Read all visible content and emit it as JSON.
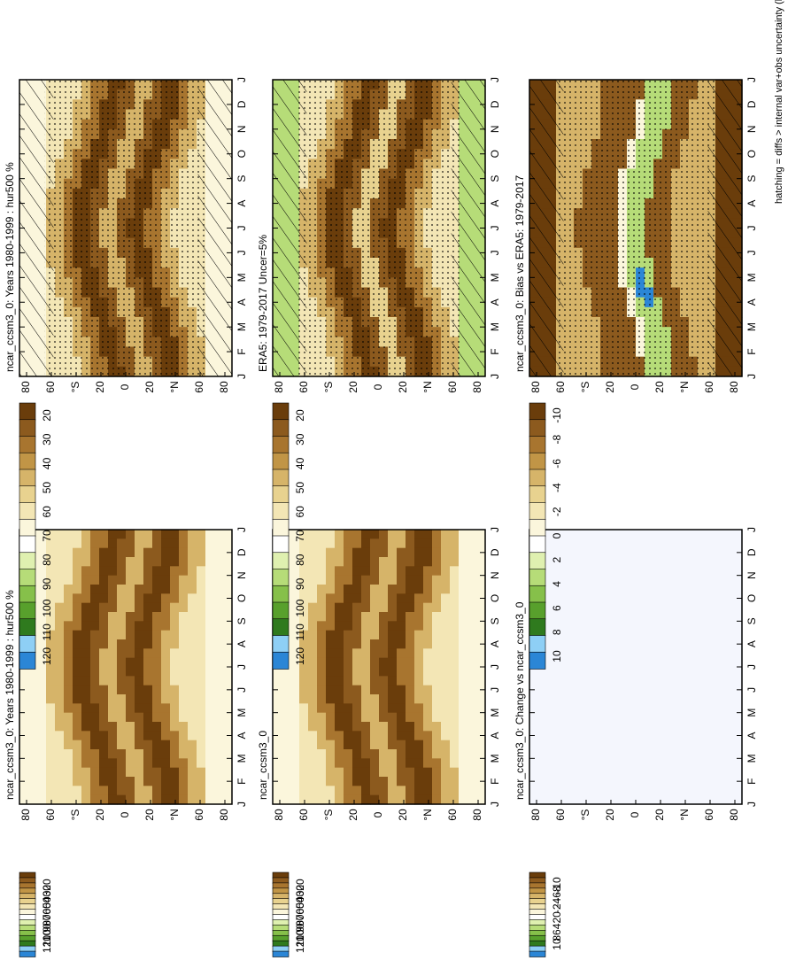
{
  "colors": {
    "rh_scale": [
      "#6a3d0b",
      "#8c5a1e",
      "#a8752f",
      "#c19546",
      "#d6b469",
      "#e8d28f",
      "#f3e6b5",
      "#fbf6dc",
      "#ffffff",
      "#dff0b0",
      "#b6dc78",
      "#86c04a",
      "#58a02c",
      "#2f7a1e",
      "#8ecff5",
      "#2b86d6"
    ],
    "bias_scale": [
      "#6a3d0b",
      "#8c5a1e",
      "#a8752f",
      "#c19546",
      "#d6b469",
      "#e8d28f",
      "#f3e6b5",
      "#fbf6dc",
      "#ffffff",
      "#dff0b0",
      "#b6dc78",
      "#86c04a",
      "#58a02c",
      "#2f7a1e",
      "#8ecff5",
      "#2b86d6"
    ],
    "zero_field": "#f4f6fd"
  },
  "caption": "hatching = diffs > internal var+obs uncertainty (left column only); stippling = diffs > internal var only",
  "colorbar_rh_labels": [
    "120",
    "110",
    "100",
    "90",
    "80",
    "70",
    "60",
    "50",
    "40",
    "30",
    "20"
  ],
  "colorbar_diff_labels": [
    "10",
    "8",
    "6",
    "4",
    "2",
    "0",
    "-2",
    "-4",
    "-6",
    "-8",
    "-10"
  ],
  "chart_data": [
    {
      "type": "heatmap",
      "title": "ncar_ccsm3_0: Years 1980-1999 : hur500 %",
      "x_ticks": [
        "J",
        "F",
        "M",
        "A",
        "M",
        "J",
        "J",
        "A",
        "S",
        "O",
        "N",
        "D",
        "J"
      ],
      "y_ticks": [
        "80",
        "60",
        "°S",
        "20",
        "0",
        "20",
        "°N",
        "60",
        "80"
      ],
      "field": "rh",
      "hatching": true,
      "stippling": true
    },
    {
      "type": "heatmap",
      "title": "ncar_ccsm3_0: Years 1980-1999 : hur500 %",
      "x_ticks": [
        "J",
        "F",
        "M",
        "A",
        "M",
        "J",
        "J",
        "A",
        "S",
        "O",
        "N",
        "D",
        "J"
      ],
      "y_ticks": [
        "80",
        "60",
        "°S",
        "20",
        "0",
        "20",
        "°N",
        "60",
        "80"
      ],
      "field": "rh",
      "hatching": false,
      "stippling": false
    },
    {
      "type": "heatmap",
      "title": "ERA5: 1979-2017 Uncer=5%",
      "x_ticks": [
        "J",
        "F",
        "M",
        "A",
        "M",
        "J",
        "J",
        "A",
        "S",
        "O",
        "N",
        "D",
        "J"
      ],
      "y_ticks": [
        "80",
        "60",
        "°S",
        "20",
        "0",
        "20",
        "°N",
        "60",
        "80"
      ],
      "field": "rh_obs",
      "hatching": true,
      "stippling": true
    },
    {
      "type": "heatmap",
      "title": "ncar_ccsm3_0",
      "x_ticks": [
        "J",
        "F",
        "M",
        "A",
        "M",
        "J",
        "J",
        "A",
        "S",
        "O",
        "N",
        "D",
        "J"
      ],
      "y_ticks": [
        "80",
        "60",
        "°S",
        "20",
        "0",
        "20",
        "°N",
        "60",
        "80"
      ],
      "field": "rh",
      "hatching": false,
      "stippling": false
    },
    {
      "type": "heatmap",
      "title": "ncar_ccsm3_0: Bias vs ERA5: 1979-2017",
      "x_ticks": [
        "J",
        "F",
        "M",
        "A",
        "M",
        "J",
        "J",
        "A",
        "S",
        "O",
        "N",
        "D",
        "J"
      ],
      "y_ticks": [
        "80",
        "60",
        "°S",
        "20",
        "0",
        "20",
        "°N",
        "60",
        "80"
      ],
      "field": "bias",
      "hatching": true,
      "stippling": true
    },
    {
      "type": "heatmap",
      "title": "ncar_ccsm3_0: Change vs ncar_ccsm3_0",
      "x_ticks": [
        "J",
        "F",
        "M",
        "A",
        "M",
        "J",
        "J",
        "A",
        "S",
        "O",
        "N",
        "D",
        "J"
      ],
      "y_ticks": [
        "80",
        "60",
        "°S",
        "20",
        "0",
        "20",
        "°N",
        "60",
        "80"
      ],
      "field": "zero",
      "hatching": false,
      "stippling": false
    }
  ]
}
